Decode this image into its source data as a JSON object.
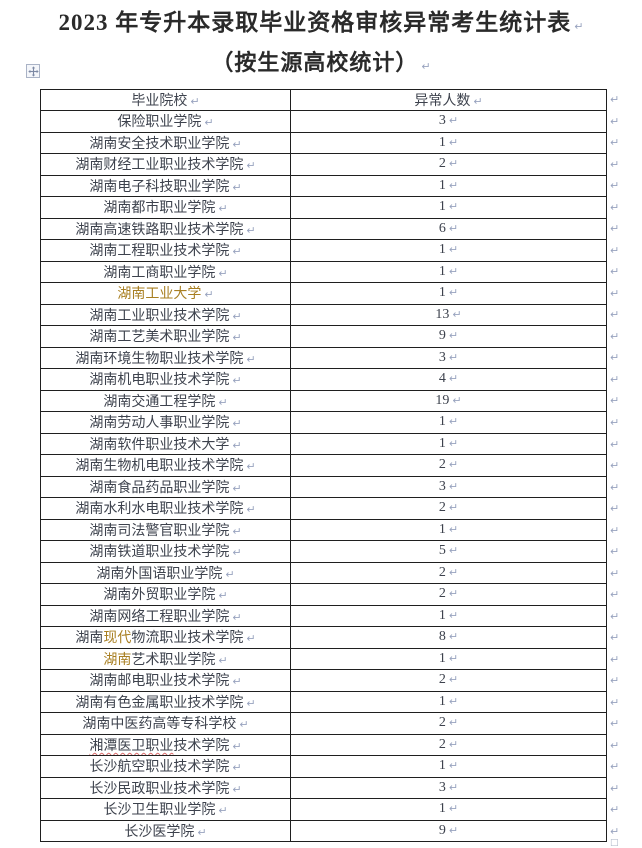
{
  "document": {
    "title": "2023 年专升本录取毕业资格审核异常考生统计表",
    "subtitle": "（按生源高校统计）"
  },
  "marks": {
    "pilcrow": "↵",
    "end_of_doc": "□"
  },
  "colors": {
    "accent_orange": "#a87f22",
    "formatting_mark": "#98a3bf",
    "table_border": "#1f1f1f",
    "body_text": "#3d424d",
    "spellcheck_red": "#d96a6a",
    "page_background": "#ffffff"
  },
  "table": {
    "headers": [
      "毕业院校",
      "异常人数"
    ],
    "rows": [
      {
        "segments": [
          {
            "t": "保险职业学院"
          }
        ],
        "count": "3"
      },
      {
        "segments": [
          {
            "t": "湖南安全技术职业学院"
          }
        ],
        "count": "1"
      },
      {
        "segments": [
          {
            "t": "湖南财经工业职业技术学院"
          }
        ],
        "count": "2"
      },
      {
        "segments": [
          {
            "t": "湖南电子科技职业学院"
          }
        ],
        "count": "1"
      },
      {
        "segments": [
          {
            "t": "湖南都市职业学院"
          }
        ],
        "count": "1"
      },
      {
        "segments": [
          {
            "t": "湖南高速铁路职业技术学院"
          }
        ],
        "count": "6"
      },
      {
        "segments": [
          {
            "t": "湖南工程职业技术学院"
          }
        ],
        "count": "1"
      },
      {
        "segments": [
          {
            "t": "湖南工商职业学院"
          }
        ],
        "count": "1"
      },
      {
        "segments": [
          {
            "t": "湖南工业大学",
            "c": "accent"
          }
        ],
        "count": "1"
      },
      {
        "segments": [
          {
            "t": "湖南工业职业技术学院"
          }
        ],
        "count": "13"
      },
      {
        "segments": [
          {
            "t": "湖南工艺美术职业学院"
          }
        ],
        "count": "9"
      },
      {
        "segments": [
          {
            "t": "湖南环境生物职业技术学院"
          }
        ],
        "count": "3"
      },
      {
        "segments": [
          {
            "t": "湖南机电职业技术学院"
          }
        ],
        "count": "4"
      },
      {
        "segments": [
          {
            "t": "湖南交通工程学院"
          }
        ],
        "count": "19"
      },
      {
        "segments": [
          {
            "t": "湖南劳动人事职业学院"
          }
        ],
        "count": "1"
      },
      {
        "segments": [
          {
            "t": "湖南软件职业技术大学"
          }
        ],
        "count": "1"
      },
      {
        "segments": [
          {
            "t": "湖南生物机电职业技术学院"
          }
        ],
        "count": "2"
      },
      {
        "segments": [
          {
            "t": "湖南食品药品职业学院"
          }
        ],
        "count": "3"
      },
      {
        "segments": [
          {
            "t": "湖南水利水电职业技术学院"
          }
        ],
        "count": "2"
      },
      {
        "segments": [
          {
            "t": "湖南司法警官职业学院"
          }
        ],
        "count": "1"
      },
      {
        "segments": [
          {
            "t": "湖南铁道职业技术学院"
          }
        ],
        "count": "5"
      },
      {
        "segments": [
          {
            "t": "湖南外国语职业学院"
          }
        ],
        "count": "2"
      },
      {
        "segments": [
          {
            "t": "湖南外贸职业学院"
          }
        ],
        "count": "2"
      },
      {
        "segments": [
          {
            "t": "湖南网络工程职业学院"
          }
        ],
        "count": "1"
      },
      {
        "segments": [
          {
            "t": "湖南"
          },
          {
            "t": "现代",
            "c": "accent"
          },
          {
            "t": "物流职业技术学院"
          }
        ],
        "count": "8"
      },
      {
        "segments": [
          {
            "t": "湖南",
            "c": "accent"
          },
          {
            "t": "艺术职业学院"
          }
        ],
        "count": "1"
      },
      {
        "segments": [
          {
            "t": "湖南邮电职业技术学院"
          }
        ],
        "count": "2"
      },
      {
        "segments": [
          {
            "t": "湖南有色金属职业技术学院"
          }
        ],
        "count": "1"
      },
      {
        "segments": [
          {
            "t": "湖南中医药高等专科学校"
          }
        ],
        "count": "2"
      },
      {
        "segments": [
          {
            "t": "湘潭医卫职业",
            "u": "spell"
          },
          {
            "t": "技术学院"
          }
        ],
        "count": "2"
      },
      {
        "segments": [
          {
            "t": "长沙航空职业技术学院"
          }
        ],
        "count": "1"
      },
      {
        "segments": [
          {
            "t": "长沙民政职业技术学院"
          }
        ],
        "count": "3"
      },
      {
        "segments": [
          {
            "t": "长沙卫生职业学院"
          }
        ],
        "count": "1"
      },
      {
        "segments": [
          {
            "t": "长沙医学院"
          }
        ],
        "count": "9"
      }
    ]
  }
}
